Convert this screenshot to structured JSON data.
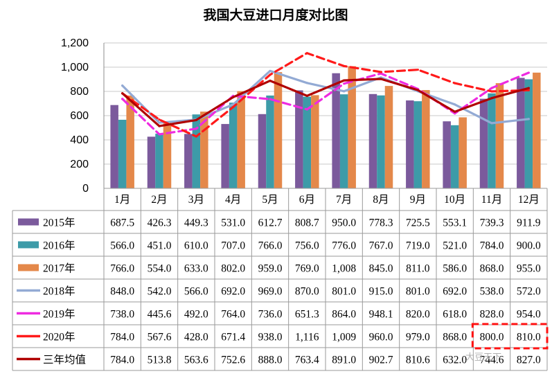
{
  "chart_data": {
    "type": "bar",
    "title": "我国大豆进口月度对比图",
    "categories": [
      "1月",
      "2月",
      "3月",
      "4月",
      "5月",
      "6月",
      "7月",
      "8月",
      "9月",
      "10月",
      "11月",
      "12月"
    ],
    "ylim": [
      0,
      1200
    ],
    "yticks": [
      "0",
      "200",
      "400",
      "600",
      "800",
      "1,000",
      "1,200"
    ],
    "grid": true,
    "bar_series": [
      {
        "name": "2015年",
        "color": "#7b5a9c",
        "values": [
          687.5,
          426.3,
          449.3,
          531.0,
          612.7,
          808.7,
          950.0,
          778.3,
          725.5,
          553.1,
          739.3,
          911.9
        ],
        "labels": [
          "687.5",
          "426.3",
          "449.3",
          "531.0",
          "612.7",
          "808.7",
          "950.0",
          "778.3",
          "725.5",
          "553.1",
          "739.3",
          "911.9"
        ]
      },
      {
        "name": "2016年",
        "color": "#3d9ba8",
        "values": [
          566.0,
          451.0,
          610.0,
          707.0,
          766.0,
          756.0,
          776.0,
          767.0,
          719.0,
          521.0,
          784.0,
          900.0
        ],
        "labels": [
          "566.0",
          "451.0",
          "610.0",
          "707.0",
          "766.0",
          "756.0",
          "776.0",
          "767.0",
          "719.0",
          "521.0",
          "784.0",
          "900.0"
        ]
      },
      {
        "name": "2017年",
        "color": "#e4884a",
        "values": [
          766.0,
          554.0,
          633.0,
          802.0,
          959.0,
          769.0,
          1008,
          845.0,
          811.0,
          586.0,
          868.0,
          955.0
        ],
        "labels": [
          "766.0",
          "554.0",
          "633.0",
          "802.0",
          "959.0",
          "769.0",
          "1,008",
          "845.0",
          "811.0",
          "586.0",
          "868.0",
          "955.0"
        ]
      }
    ],
    "line_series": [
      {
        "name": "2018年",
        "color": "#93aad4",
        "dash": false,
        "values": [
          848.0,
          542.0,
          566.0,
          692.0,
          969.0,
          870.0,
          801.0,
          915.0,
          801.0,
          692.0,
          538.0,
          572.0
        ],
        "labels": [
          "848.0",
          "542.0",
          "566.0",
          "692.0",
          "969.0",
          "870.0",
          "801.0",
          "915.0",
          "801.0",
          "692.0",
          "538.0",
          "572.0"
        ]
      },
      {
        "name": "2019年",
        "color": "#ee2be0",
        "dash": true,
        "values": [
          738.0,
          445.6,
          492.0,
          764.0,
          736.0,
          651.3,
          864.0,
          948.1,
          820.0,
          618.0,
          828.0,
          954.0
        ],
        "labels": [
          "738.0",
          "445.6",
          "492.0",
          "764.0",
          "736.0",
          "651.3",
          "864.0",
          "948.1",
          "820.0",
          "618.0",
          "828.0",
          "954.0"
        ]
      },
      {
        "name": "2020年",
        "color": "#ff1a1a",
        "dash": true,
        "values": [
          784.0,
          567.6,
          428.0,
          671.4,
          938.0,
          1116,
          1009,
          960.0,
          979.0,
          868.0,
          800.0,
          810.0
        ],
        "labels": [
          "784.0",
          "567.6",
          "428.0",
          "671.4",
          "938.0",
          "1,116",
          "1,009",
          "960.0",
          "979.0",
          "868.0",
          "800.0",
          "810.0"
        ]
      },
      {
        "name": "三年均值",
        "color": "#b00000",
        "dash": false,
        "values": [
          784.0,
          513.8,
          563.6,
          752.6,
          888.0,
          763.4,
          891.0,
          902.7,
          810.6,
          632.0,
          744.6,
          827.0
        ],
        "labels": [
          "784.0",
          "513.8",
          "563.6",
          "752.6",
          "888.0",
          "763.4",
          "891.0",
          "902.7",
          "810.6",
          "632.0",
          "744.6",
          "827.0"
        ]
      }
    ]
  },
  "watermark": "大豆天下"
}
